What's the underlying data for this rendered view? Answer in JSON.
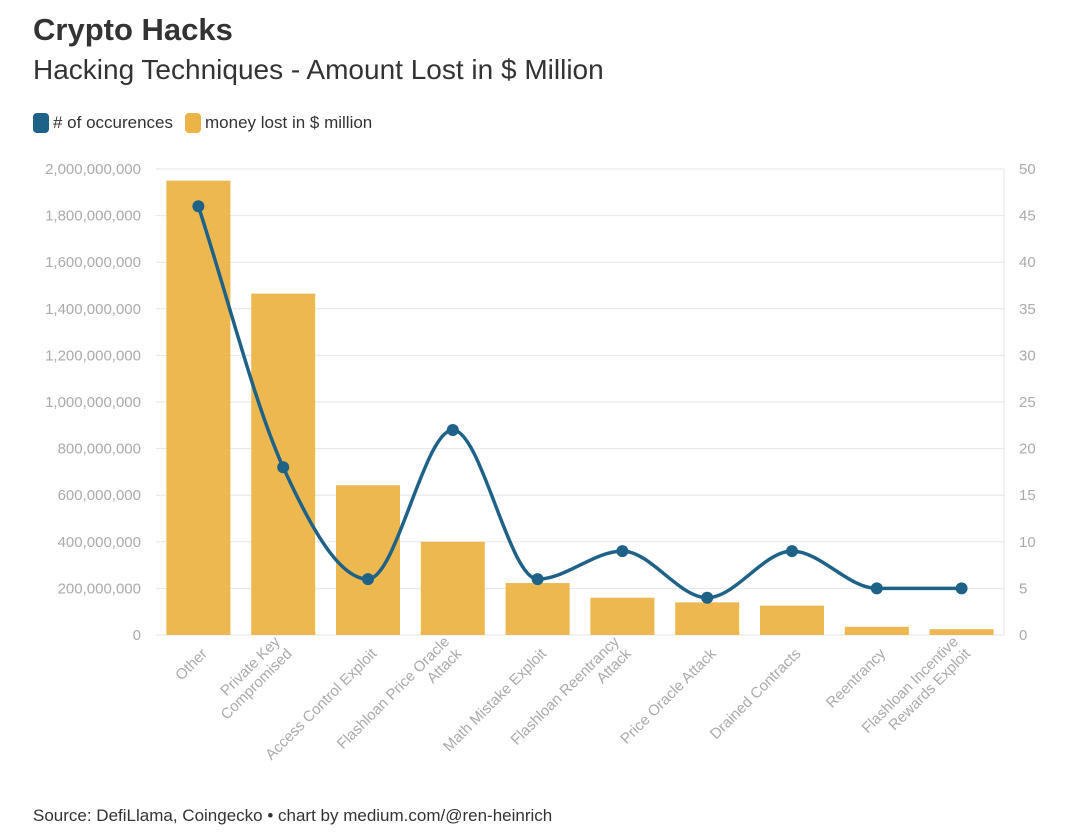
{
  "header": {
    "title": "Crypto Hacks",
    "subtitle": "Hacking Techniques - Amount Lost in $ Million"
  },
  "footer": {
    "source": "Source: DefiLlama, Coingecko • chart by medium.com/@ren-heinrich"
  },
  "colors": {
    "bar": "#EBB446",
    "line": "#1F6287",
    "grid": "#e6e6e6",
    "tick": "#aaaaaa"
  },
  "chart_data": {
    "type": "bar",
    "title": "Crypto Hacks",
    "subtitle": "Hacking Techniques - Amount Lost in $ Million",
    "categories": [
      [
        "Other"
      ],
      [
        "Private Key",
        "Compromised"
      ],
      [
        "Access Control Exploit"
      ],
      [
        "Flashloan Price Oracle",
        "Attack"
      ],
      [
        "Math Mistake Exploit"
      ],
      [
        "Flashloan Reentrancy",
        "Attack"
      ],
      [
        "Price Oracle Attack"
      ],
      [
        "Drained Contracts"
      ],
      [
        "Reentrancy"
      ],
      [
        "Flashloan Incentive",
        "Rewards Exploit"
      ]
    ],
    "series": [
      {
        "name": "money lost in $ million",
        "type": "bar",
        "axis": "left",
        "values": [
          1950000000,
          1465000000,
          643000000,
          400000000,
          223000000,
          160000000,
          140000000,
          126000000,
          35000000,
          25000000
        ]
      },
      {
        "name": "# of occurences",
        "type": "line",
        "axis": "right",
        "values": [
          46,
          18,
          6,
          22,
          6,
          9,
          4,
          9,
          5,
          5
        ]
      }
    ],
    "y_left": {
      "min": 0,
      "max": 2000000000,
      "ticks": [
        "0",
        "200,000,000",
        "400,000,000",
        "600,000,000",
        "800,000,000",
        "1,000,000,000",
        "1,200,000,000",
        "1,400,000,000",
        "1,600,000,000",
        "1,800,000,000",
        "2,000,000,000"
      ]
    },
    "y_right": {
      "min": 0,
      "max": 50,
      "ticks": [
        "0",
        "5",
        "10",
        "15",
        "20",
        "25",
        "30",
        "35",
        "40",
        "45",
        "50"
      ]
    },
    "legend": {
      "position": "top-left",
      "entries": [
        "# of occurences",
        "money lost in $ million"
      ]
    },
    "grid": true
  }
}
